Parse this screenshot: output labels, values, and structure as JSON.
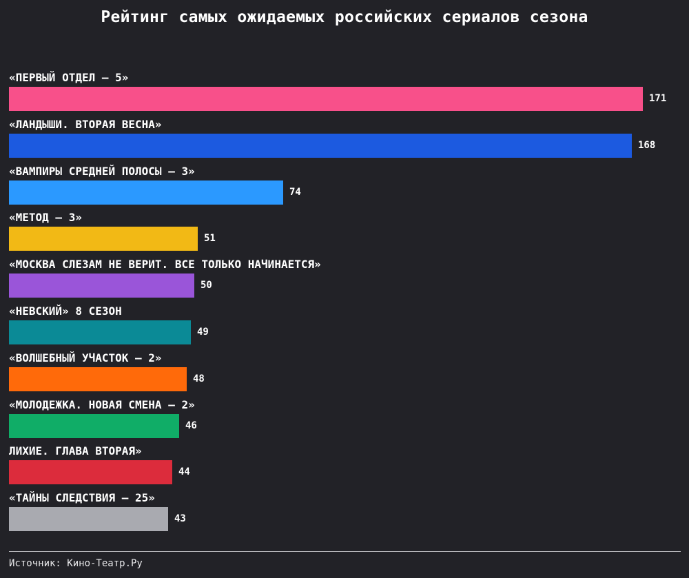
{
  "chart_data": {
    "type": "bar",
    "orientation": "horizontal",
    "title": "Рейтинг самых ожидаемых российских сериалов сезона",
    "categories": [
      "«ПЕРВЫЙ ОТДЕЛ — 5»",
      "«ЛАНДЫШИ. ВТОРАЯ ВЕСНА»",
      "«ВАМПИРЫ СРЕДНЕЙ ПОЛОСЫ — 3»",
      "«МЕТОД — 3»",
      "«МОСКВА СЛЕЗАМ НЕ ВЕРИТ. ВСЕ ТОЛЬКО НАЧИНАЕТСЯ»",
      "«НЕВСКИЙ» 8 СЕЗОН",
      "«ВОЛШЕБНЫЙ УЧАСТОК — 2»",
      "«МОЛОДЕЖКА. НОВАЯ СМЕНА — 2»",
      "ЛИХИЕ. ГЛАВА ВТОРАЯ»",
      "«ТАЙНЫ СЛЕДСТВИЯ — 25»"
    ],
    "values": [
      171,
      168,
      74,
      51,
      50,
      49,
      48,
      46,
      44,
      43
    ],
    "colors": [
      "#f8508a",
      "#1c5ae0",
      "#2b99ff",
      "#f2b915",
      "#9a55d9",
      "#0b8a96",
      "#ff6a0a",
      "#10ad67",
      "#dc2c3c",
      "#a9aab0"
    ],
    "xlim": [
      0,
      171
    ],
    "grid": false,
    "legend": "none",
    "source": "Источник: Кино-Театр.Ру"
  }
}
